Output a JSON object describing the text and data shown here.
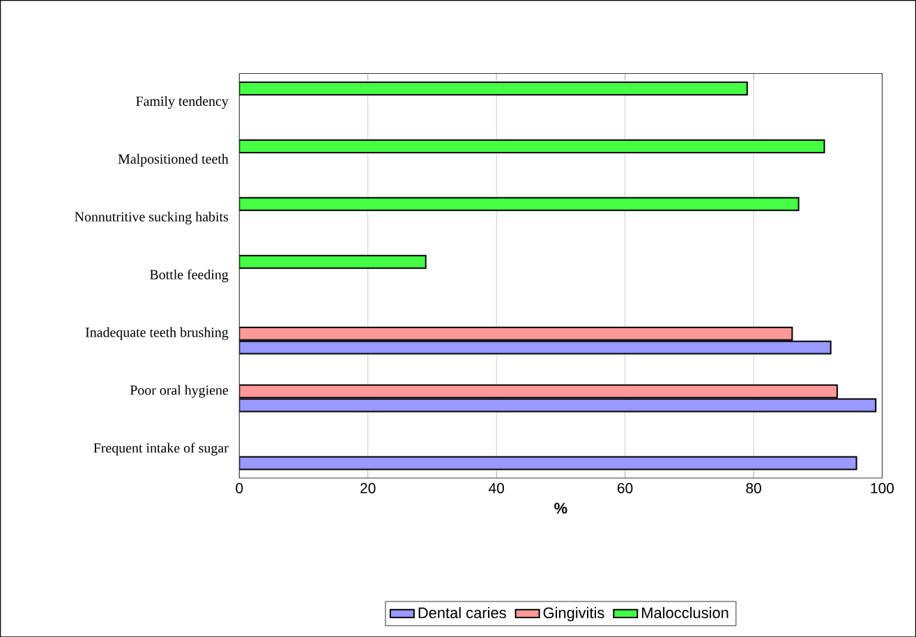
{
  "chart_data": {
    "type": "bar",
    "orientation": "horizontal",
    "xlabel": "%",
    "categories": [
      "Family tendency",
      "Malpositioned teeth",
      "Nonnutritive sucking habits",
      "Bottle feeding",
      "Inadequate teeth brushing",
      "Poor oral hygiene",
      "Frequent intake of sugar"
    ],
    "series": [
      {
        "name": "Dental caries",
        "color": "#9999ff",
        "values": [
          null,
          null,
          null,
          null,
          92,
          99,
          96
        ]
      },
      {
        "name": "Gingivitis",
        "color": "#ff9999",
        "values": [
          null,
          null,
          null,
          null,
          86,
          93,
          null
        ]
      },
      {
        "name": "Malocclusion",
        "color": "#44ff44",
        "values": [
          79,
          91,
          87,
          29,
          null,
          null,
          null
        ]
      }
    ],
    "xlim": [
      0,
      100
    ],
    "xticks": [
      0,
      20,
      40,
      60,
      80,
      100
    ],
    "grid": "x",
    "legend": "bottom"
  }
}
